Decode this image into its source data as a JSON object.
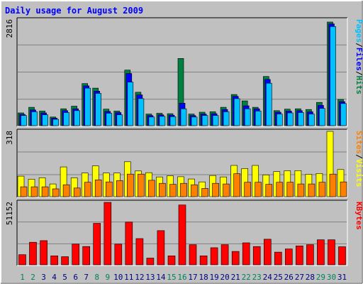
{
  "chart_data": [
    {
      "type": "bar",
      "title": "Daily usage for August 2009",
      "ymax_label": "2816",
      "ylim": [
        0,
        2816
      ],
      "categories": [
        "1",
        "2",
        "3",
        "4",
        "5",
        "6",
        "7",
        "8",
        "9",
        "10",
        "11",
        "12",
        "13",
        "14",
        "15",
        "16",
        "17",
        "18",
        "19",
        "20",
        "21",
        "22",
        "23",
        "24",
        "25",
        "26",
        "27",
        "28",
        "29",
        "30",
        "31"
      ],
      "weekend_days": [
        "1",
        "2",
        "8",
        "9",
        "15",
        "16",
        "22",
        "23",
        "29",
        "30"
      ],
      "side_label": [
        "Pages",
        "Files",
        "Hits"
      ],
      "series": [
        {
          "name": "Hits",
          "color": "#008040",
          "values": [
            340,
            490,
            390,
            230,
            450,
            520,
            1120,
            1000,
            440,
            390,
            1480,
            890,
            310,
            330,
            320,
            1790,
            310,
            360,
            370,
            490,
            830,
            660,
            490,
            1310,
            400,
            440,
            450,
            430,
            620,
            2760,
            700
          ]
        },
        {
          "name": "Files",
          "color": "#0000ff",
          "values": [
            300,
            420,
            340,
            200,
            400,
            450,
            1060,
            920,
            380,
            350,
            1390,
            820,
            270,
            290,
            280,
            600,
            270,
            310,
            320,
            430,
            780,
            530,
            450,
            1230,
            360,
            390,
            400,
            370,
            540,
            2710,
            640
          ]
        },
        {
          "name": "Pages",
          "color": "#00c0ff",
          "values": [
            270,
            370,
            290,
            170,
            350,
            400,
            1000,
            860,
            330,
            290,
            1160,
            720,
            230,
            250,
            240,
            450,
            230,
            270,
            270,
            370,
            720,
            450,
            390,
            1130,
            310,
            340,
            350,
            310,
            460,
            2640,
            590
          ]
        }
      ]
    },
    {
      "type": "bar",
      "ymax_label": "318",
      "ylim": [
        0,
        318
      ],
      "categories": [
        "1",
        "2",
        "3",
        "4",
        "5",
        "6",
        "7",
        "8",
        "9",
        "10",
        "11",
        "12",
        "13",
        "14",
        "15",
        "16",
        "17",
        "18",
        "19",
        "20",
        "21",
        "22",
        "23",
        "24",
        "25",
        "26",
        "27",
        "28",
        "29",
        "30",
        "31"
      ],
      "side_label": [
        "Sites",
        "Visits"
      ],
      "series": [
        {
          "name": "Visits",
          "color": "#ffff00",
          "values": [
            100,
            85,
            92,
            62,
            145,
            92,
            115,
            150,
            115,
            115,
            170,
            125,
            117,
            96,
            102,
            97,
            86,
            72,
            103,
            96,
            152,
            137,
            152,
            106,
            122,
            126,
            127,
            109,
            113,
            318,
            132
          ]
        },
        {
          "name": "Sites",
          "color": "#ff8000",
          "values": [
            48,
            48,
            48,
            38,
            58,
            42,
            70,
            82,
            72,
            78,
            110,
            110,
            80,
            65,
            60,
            65,
            58,
            40,
            65,
            62,
            112,
            70,
            70,
            60,
            70,
            70,
            62,
            62,
            70,
            110,
            72
          ]
        }
      ]
    },
    {
      "type": "bar",
      "ymax_label": "51152",
      "ylim": [
        0,
        51152
      ],
      "categories": [
        "1",
        "2",
        "3",
        "4",
        "5",
        "6",
        "7",
        "8",
        "9",
        "10",
        "11",
        "12",
        "13",
        "14",
        "15",
        "16",
        "17",
        "18",
        "19",
        "20",
        "21",
        "22",
        "23",
        "24",
        "25",
        "26",
        "27",
        "28",
        "29",
        "30",
        "31"
      ],
      "side_label": [
        "KBytes"
      ],
      "series": [
        {
          "name": "KBytes",
          "color": "#ff0000",
          "values": [
            8300,
            18500,
            19800,
            7400,
            6700,
            17000,
            15000,
            34000,
            51152,
            17000,
            35000,
            21500,
            5500,
            28000,
            7400,
            49000,
            16500,
            7400,
            14000,
            16500,
            11000,
            18000,
            15000,
            21000,
            10400,
            13000,
            15500,
            16500,
            20500,
            20500,
            14800
          ]
        }
      ]
    }
  ],
  "colors": {
    "background": "#c0c0c0",
    "grid": "#808080",
    "weekday": "#000080",
    "weekend": "#00805c"
  }
}
